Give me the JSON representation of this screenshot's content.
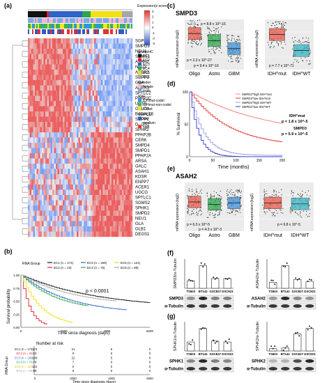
{
  "figure": {
    "panel_labels": [
      "(a)",
      "(b)",
      "(c)",
      "(d)",
      "(e)",
      "(f)",
      "(g)"
    ],
    "panel_a": {
      "expression_legend_title": "Expression(z-score)",
      "expression_ticks": [
        "3",
        "2",
        "1",
        "0",
        "-1",
        "-2",
        "-3"
      ],
      "genes": [
        "SGPL1",
        "SMPD3",
        "NEU4",
        "SGMS1",
        "ASAH2",
        "NEU3",
        "ACER2",
        "SGPP1",
        "GBA",
        "ACER3",
        "SPTLC2",
        "PPAP2C",
        "UGT8",
        "GALC1",
        "B4GALT6",
        "SGPP2",
        "DEGS2",
        "SPHK2",
        "PPAP2B",
        "CERK",
        "SMPD4",
        "SMPD1",
        "PPAP2A",
        "ARSA",
        "GALC",
        "ASAH1",
        "KDSR",
        "ENPP7",
        "ACER1",
        "UGCG",
        "SPTLC1",
        "SGMS2",
        "SPHK1",
        "SMPD2",
        "NEU1",
        "GLA",
        "GLB1",
        "DEGS1"
      ],
      "legend": {
        "groups_title": "groupHC",
        "groups": [
          {
            "label": "EC1",
            "color": "#111111"
          },
          {
            "label": "EC2",
            "color": "#e8192c"
          },
          {
            "label": "EC3",
            "color": "#2e64c8"
          },
          {
            "label": "EC4",
            "color": "#29a84a"
          },
          {
            "label": "EC5",
            "color": "#f2e012"
          },
          {
            "label": "EC6",
            "color": "#a7a7a7"
          }
        ],
        "gender_title": "Gender",
        "gender": [
          {
            "label": "female",
            "color": "#f7b6cf"
          },
          {
            "label": "male",
            "color": "#7ca9e6"
          }
        ],
        "idh_title": "IDH",
        "idh": [
          {
            "label": "IDHmut-codel",
            "color": "#2a9bd6"
          },
          {
            "label": "IDHmut-non-codel",
            "color": "#3fb449"
          },
          {
            "label": "IDHwt",
            "color": "#f3e61c"
          }
        ],
        "smpd_title": "SMPDg",
        "smpd": [
          {
            "label": "low",
            "color": "#2f5bc4"
          },
          {
            "label": "medium",
            "color": "#ffffff"
          },
          {
            "label": "high",
            "color": "#e53232"
          }
        ]
      }
    },
    "panel_b": {
      "title": "RNA Group",
      "legend": [
        "EC1 (n = 174)",
        "EC2 (n = 23)",
        "EC3 (n = 169)",
        "EC4 (n = 76)",
        "EC5 (n = 121)",
        "EC6 (n = 98)"
      ],
      "pvalue": "p < 0.0001",
      "ylabel": "Survival probability",
      "xlabel": "Time since diagnosis (days)",
      "yticks": [
        "1.00",
        "0.75",
        "0.50",
        "0.25",
        "0.00"
      ],
      "xticks": [
        "0",
        "2000",
        "4000",
        "6000"
      ],
      "risk_title": "Number at risk",
      "risk_ylabel": "RNA Group",
      "risk_rows": [
        {
          "label": "EC1 (n = 174)",
          "values": [
            "174",
            "21",
            "5",
            "0"
          ],
          "color": "#111111"
        },
        {
          "label": "EC2 (n = 23)",
          "values": [
            "23",
            "0",
            "0",
            "0"
          ],
          "color": "#e8192c"
        },
        {
          "label": "EC3 (n = 169)",
          "values": [
            "169",
            "22",
            "5",
            "0"
          ],
          "color": "#2e64c8"
        },
        {
          "label": "EC4 (n = 76)",
          "values": [
            "76",
            "7",
            "0",
            "0"
          ],
          "color": "#29a84a"
        },
        {
          "label": "EC5 (n = 121)",
          "values": [
            "121",
            "0",
            "0",
            "0"
          ],
          "color": "#d6c40e"
        },
        {
          "label": "EC6 (n = 98)",
          "values": [
            "98",
            "6",
            "0",
            "0"
          ],
          "color": "#a7a7a7"
        }
      ]
    },
    "panel_c": {
      "title": "SMPD3",
      "ylabel": "mRNA expression (log2)",
      "left_cats": [
        "Oligo",
        "Astro",
        "GBM"
      ],
      "right_cats": [
        "IDH^mut",
        "IDH^WT"
      ],
      "left_pvals": [
        "p = 8.8 x 10^-16",
        "p = 2.3 x 10^-27",
        "p = 9.4 x 10^-16"
      ],
      "right_pval": "p = 7.7 x 10^-71"
    },
    "panel_d": {
      "ylabel": "% Survivival",
      "xlabel": "Time (months)",
      "xticks": [
        "0",
        "50",
        "100",
        "150",
        "200"
      ],
      "yticks": [
        "100",
        "50",
        "0"
      ],
      "legend": [
        "SMPD3^high IDH^mut",
        "SMPD3^low IDH^mut",
        "SMPD3^high IDH^WT",
        "SMPD3^low IDH^WT"
      ],
      "stats": [
        "IDH^mut",
        "p = 1.8 x 10^-5",
        "SMPD3",
        "p = 5.9 x 10^-5"
      ]
    },
    "panel_e": {
      "title": "ASAH2",
      "ylabel": "mRNA expression (log2)",
      "left_cats": [
        "Oligo",
        "Astro",
        "GBM"
      ],
      "right_cats": [
        "IDH^mut",
        "IDH^WT"
      ],
      "left_pvals": [
        "p = 6.3 x 10^-5",
        "p = 4.3 x 10^-3"
      ],
      "right_pval": "p = 9.8 x 10^-5"
    },
    "panel_f": {
      "left_ylabel": "SMPD3/α-Tubulin",
      "right_ylabel": "ASAH2/α-Tubulin",
      "cells": [
        "TS603",
        "BT142",
        "GSC827",
        "GSC923"
      ],
      "left_bands": [
        "SMPD3",
        "α-Tubulin"
      ],
      "right_bands": [
        "ASAH2",
        "α-Tubulin"
      ]
    },
    "panel_g": {
      "left_ylabel": "SPHK1/α-Tubulin",
      "right_ylabel": "SPHK2/α-Tubulin",
      "cells": [
        "TS603",
        "BT142",
        "GSC827",
        "GSC923"
      ],
      "left_bands": [
        "SPHK1",
        "α-Tubulin"
      ],
      "right_bands": [
        "SPHK2",
        "α-Tubulin"
      ]
    }
  }
}
